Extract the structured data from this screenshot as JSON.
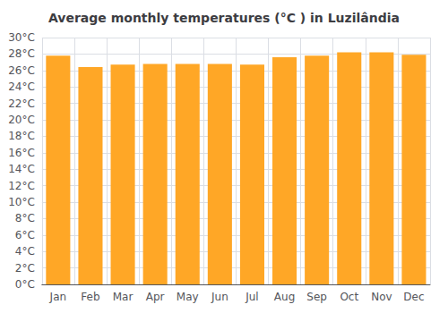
{
  "chart_data": {
    "type": "bar",
    "title": "Average monthly temperatures (°C ) in Luzilândia",
    "categories": [
      "Jan",
      "Feb",
      "Mar",
      "Apr",
      "May",
      "Jun",
      "Jul",
      "Aug",
      "Sep",
      "Oct",
      "Nov",
      "Dec"
    ],
    "values": [
      27.8,
      26.4,
      26.7,
      26.8,
      26.8,
      26.8,
      26.7,
      27.6,
      27.8,
      28.2,
      28.2,
      27.9
    ],
    "color": "#FFA726",
    "ylim": [
      0,
      30
    ],
    "yticks": [
      {
        "value": 0,
        "label": "0°C"
      },
      {
        "value": 2,
        "label": "2°C"
      },
      {
        "value": 4,
        "label": "4°C"
      },
      {
        "value": 6,
        "label": "6°C"
      },
      {
        "value": 8,
        "label": "8°C"
      },
      {
        "value": 10,
        "label": "10°C"
      },
      {
        "value": 12,
        "label": "12°C"
      },
      {
        "value": 14,
        "label": "14°C"
      },
      {
        "value": 16,
        "label": "16°C"
      },
      {
        "value": 18,
        "label": "18°C"
      },
      {
        "value": 20,
        "label": "20°C"
      },
      {
        "value": 22,
        "label": "22°C"
      },
      {
        "value": 24,
        "label": "24°C"
      },
      {
        "value": 26,
        "label": "26°C"
      },
      {
        "value": 28,
        "label": "28°C"
      },
      {
        "value": 30,
        "label": "30°C"
      }
    ],
    "grid": true
  }
}
